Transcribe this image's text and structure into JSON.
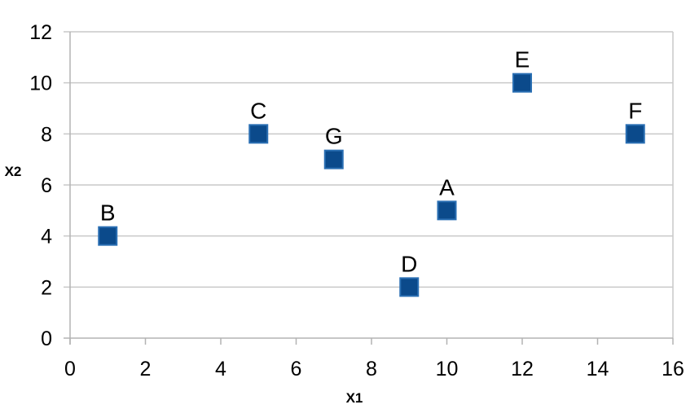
{
  "chart_data": {
    "type": "scatter",
    "xlabel": "X1",
    "ylabel": "X2",
    "xlim": [
      0,
      16
    ],
    "ylim": [
      0,
      12
    ],
    "xticks": [
      0,
      2,
      4,
      6,
      8,
      10,
      12,
      14,
      16
    ],
    "yticks": [
      0,
      2,
      4,
      6,
      8,
      10,
      12
    ],
    "grid": true,
    "legend": "none",
    "marker": "square",
    "colors": {
      "marker_fill": "#0b4a8b",
      "marker_edge": "#2a6fb3",
      "grid": "#c9c9c9",
      "axis": "#b3b3b3"
    },
    "points": [
      {
        "label": "A",
        "x": 10,
        "y": 5
      },
      {
        "label": "B",
        "x": 1,
        "y": 4
      },
      {
        "label": "C",
        "x": 5,
        "y": 8
      },
      {
        "label": "D",
        "x": 9,
        "y": 2
      },
      {
        "label": "E",
        "x": 12,
        "y": 10
      },
      {
        "label": "F",
        "x": 15,
        "y": 8
      },
      {
        "label": "G",
        "x": 7,
        "y": 7
      }
    ]
  }
}
